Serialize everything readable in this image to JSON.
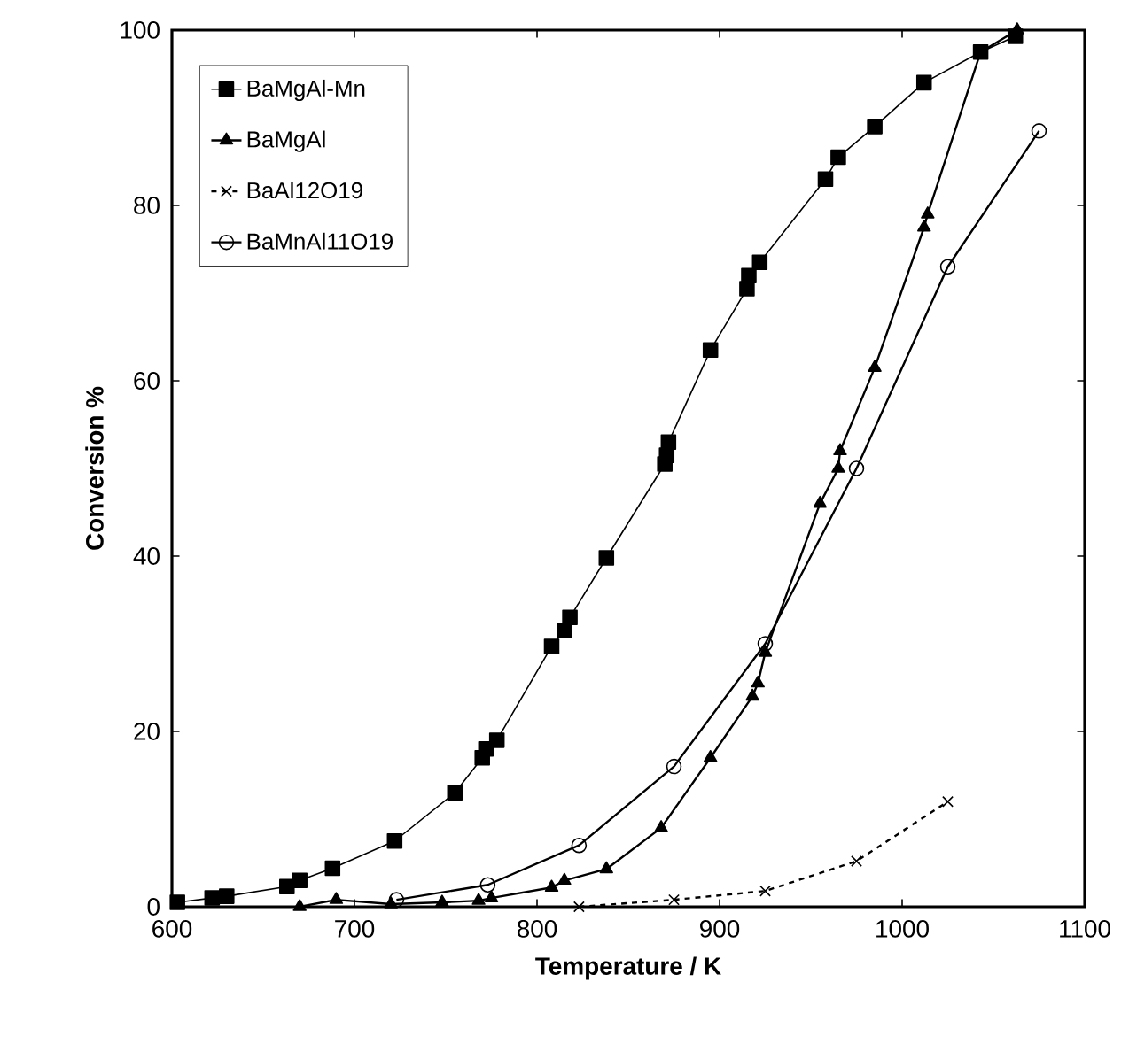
{
  "chart_data": {
    "type": "line",
    "xlabel": "Temperature / K",
    "ylabel": "Conversion %",
    "xlim": [
      600,
      1100
    ],
    "ylim": [
      0,
      100
    ],
    "xticks": [
      600,
      700,
      800,
      900,
      1000,
      1100
    ],
    "yticks": [
      0,
      20,
      40,
      60,
      80,
      100
    ],
    "legend": "top left",
    "grid": false,
    "series": [
      {
        "name": "BaMgAl-Mn",
        "color": "#000000",
        "marker": "square",
        "line_style": "solid",
        "x": [
          603,
          622,
          630,
          663,
          670,
          688,
          722,
          755,
          770,
          772,
          778,
          808,
          815,
          818,
          838,
          870,
          871,
          872,
          895,
          915,
          916,
          922,
          958,
          965,
          985,
          1012,
          1043,
          1062
        ],
        "values": [
          0.5,
          1,
          1.2,
          2.3,
          3,
          4.4,
          7.5,
          13,
          17,
          18,
          19,
          29.7,
          31.5,
          33,
          39.8,
          50.5,
          51.5,
          53,
          63.5,
          70.5,
          72,
          73.5,
          83,
          85.5,
          89,
          94,
          97.5,
          99.3
        ]
      },
      {
        "name": "BaMgAl",
        "color": "#000000",
        "marker": "triangle",
        "line_style": "solid",
        "x": [
          670,
          690,
          720,
          748,
          768,
          775,
          808,
          815,
          838,
          868,
          895,
          918,
          921,
          925,
          955,
          965,
          966,
          985,
          1012,
          1014,
          1043,
          1063
        ],
        "values": [
          0,
          0.8,
          0.3,
          0.5,
          0.7,
          1,
          2.2,
          3,
          4.3,
          9,
          17,
          24,
          25.5,
          29,
          46,
          50,
          52,
          61.5,
          77.5,
          79,
          97.5,
          100
        ]
      },
      {
        "name": "BaAl12O19",
        "color": "#000000",
        "marker": "cross",
        "line_style": "dashed",
        "x": [
          823,
          875,
          925,
          975,
          1025
        ],
        "values": [
          0,
          0.8,
          1.8,
          5.2,
          12
        ]
      },
      {
        "name": "BaMnAl11O19",
        "color": "#000000",
        "marker": "circle",
        "line_style": "solid",
        "x": [
          723,
          773,
          823,
          875,
          925,
          975,
          1025,
          1075
        ],
        "values": [
          0.8,
          2.5,
          7,
          16,
          30,
          50,
          73,
          88.5
        ]
      }
    ]
  }
}
